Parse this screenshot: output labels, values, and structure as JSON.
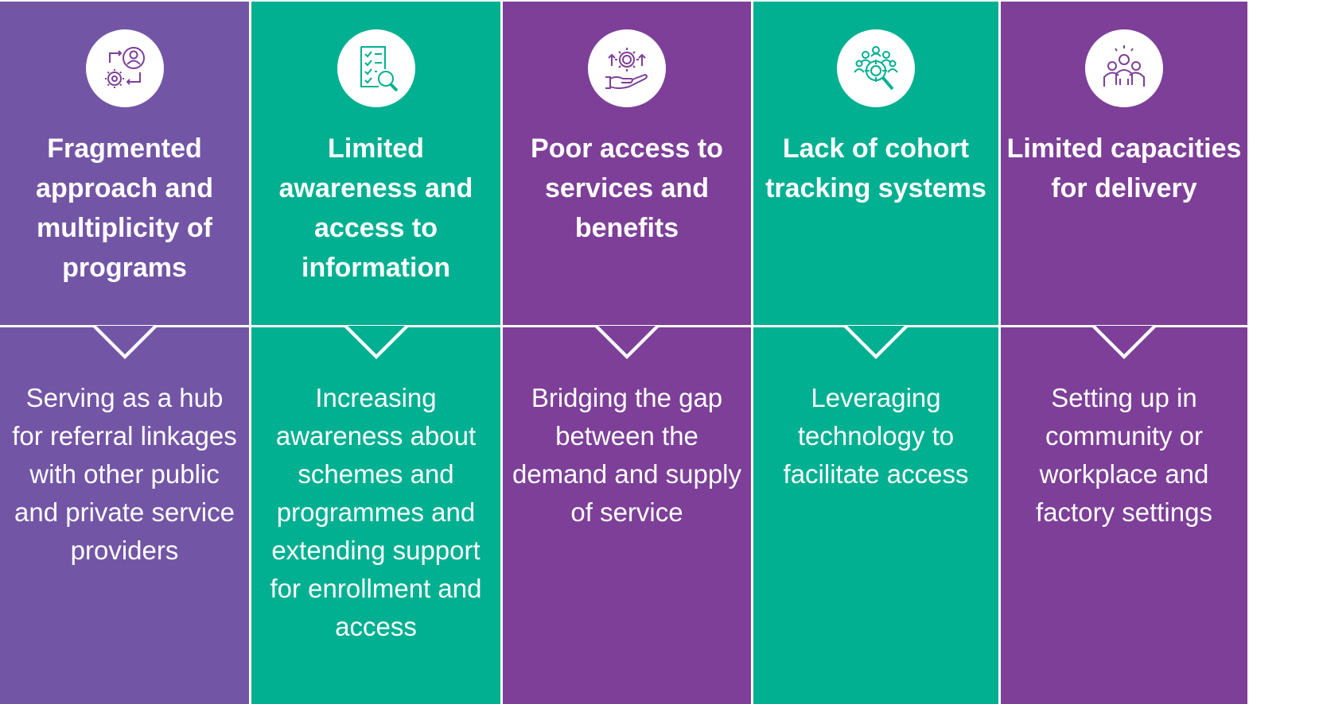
{
  "colors": {
    "purple_light": "#7355a6",
    "purple_dark": "#7d3f98",
    "teal": "#00b091",
    "white": "#ffffff"
  },
  "columns": [
    {
      "icon": "process-people-gears-icon",
      "title": "Fragmented approach and multiplicity of programs",
      "description": "Serving  as a hub for referral linkages with other public and private service providers"
    },
    {
      "icon": "checklist-magnifier-icon",
      "title": "Limited awareness and access to information",
      "description": "Increasing awareness about schemes and programmes and extending support for enrollment and access"
    },
    {
      "icon": "hand-coin-gear-icon",
      "title": "Poor access to services and benefits",
      "description": "Bridging the gap between the demand and supply of service"
    },
    {
      "icon": "group-target-search-icon",
      "title": "Lack of cohort tracking systems",
      "description": "Leveraging technology to facilitate access"
    },
    {
      "icon": "team-idea-icon",
      "title": "Limited capacities for delivery",
      "description": "Setting up in community or workplace and factory settings"
    }
  ]
}
